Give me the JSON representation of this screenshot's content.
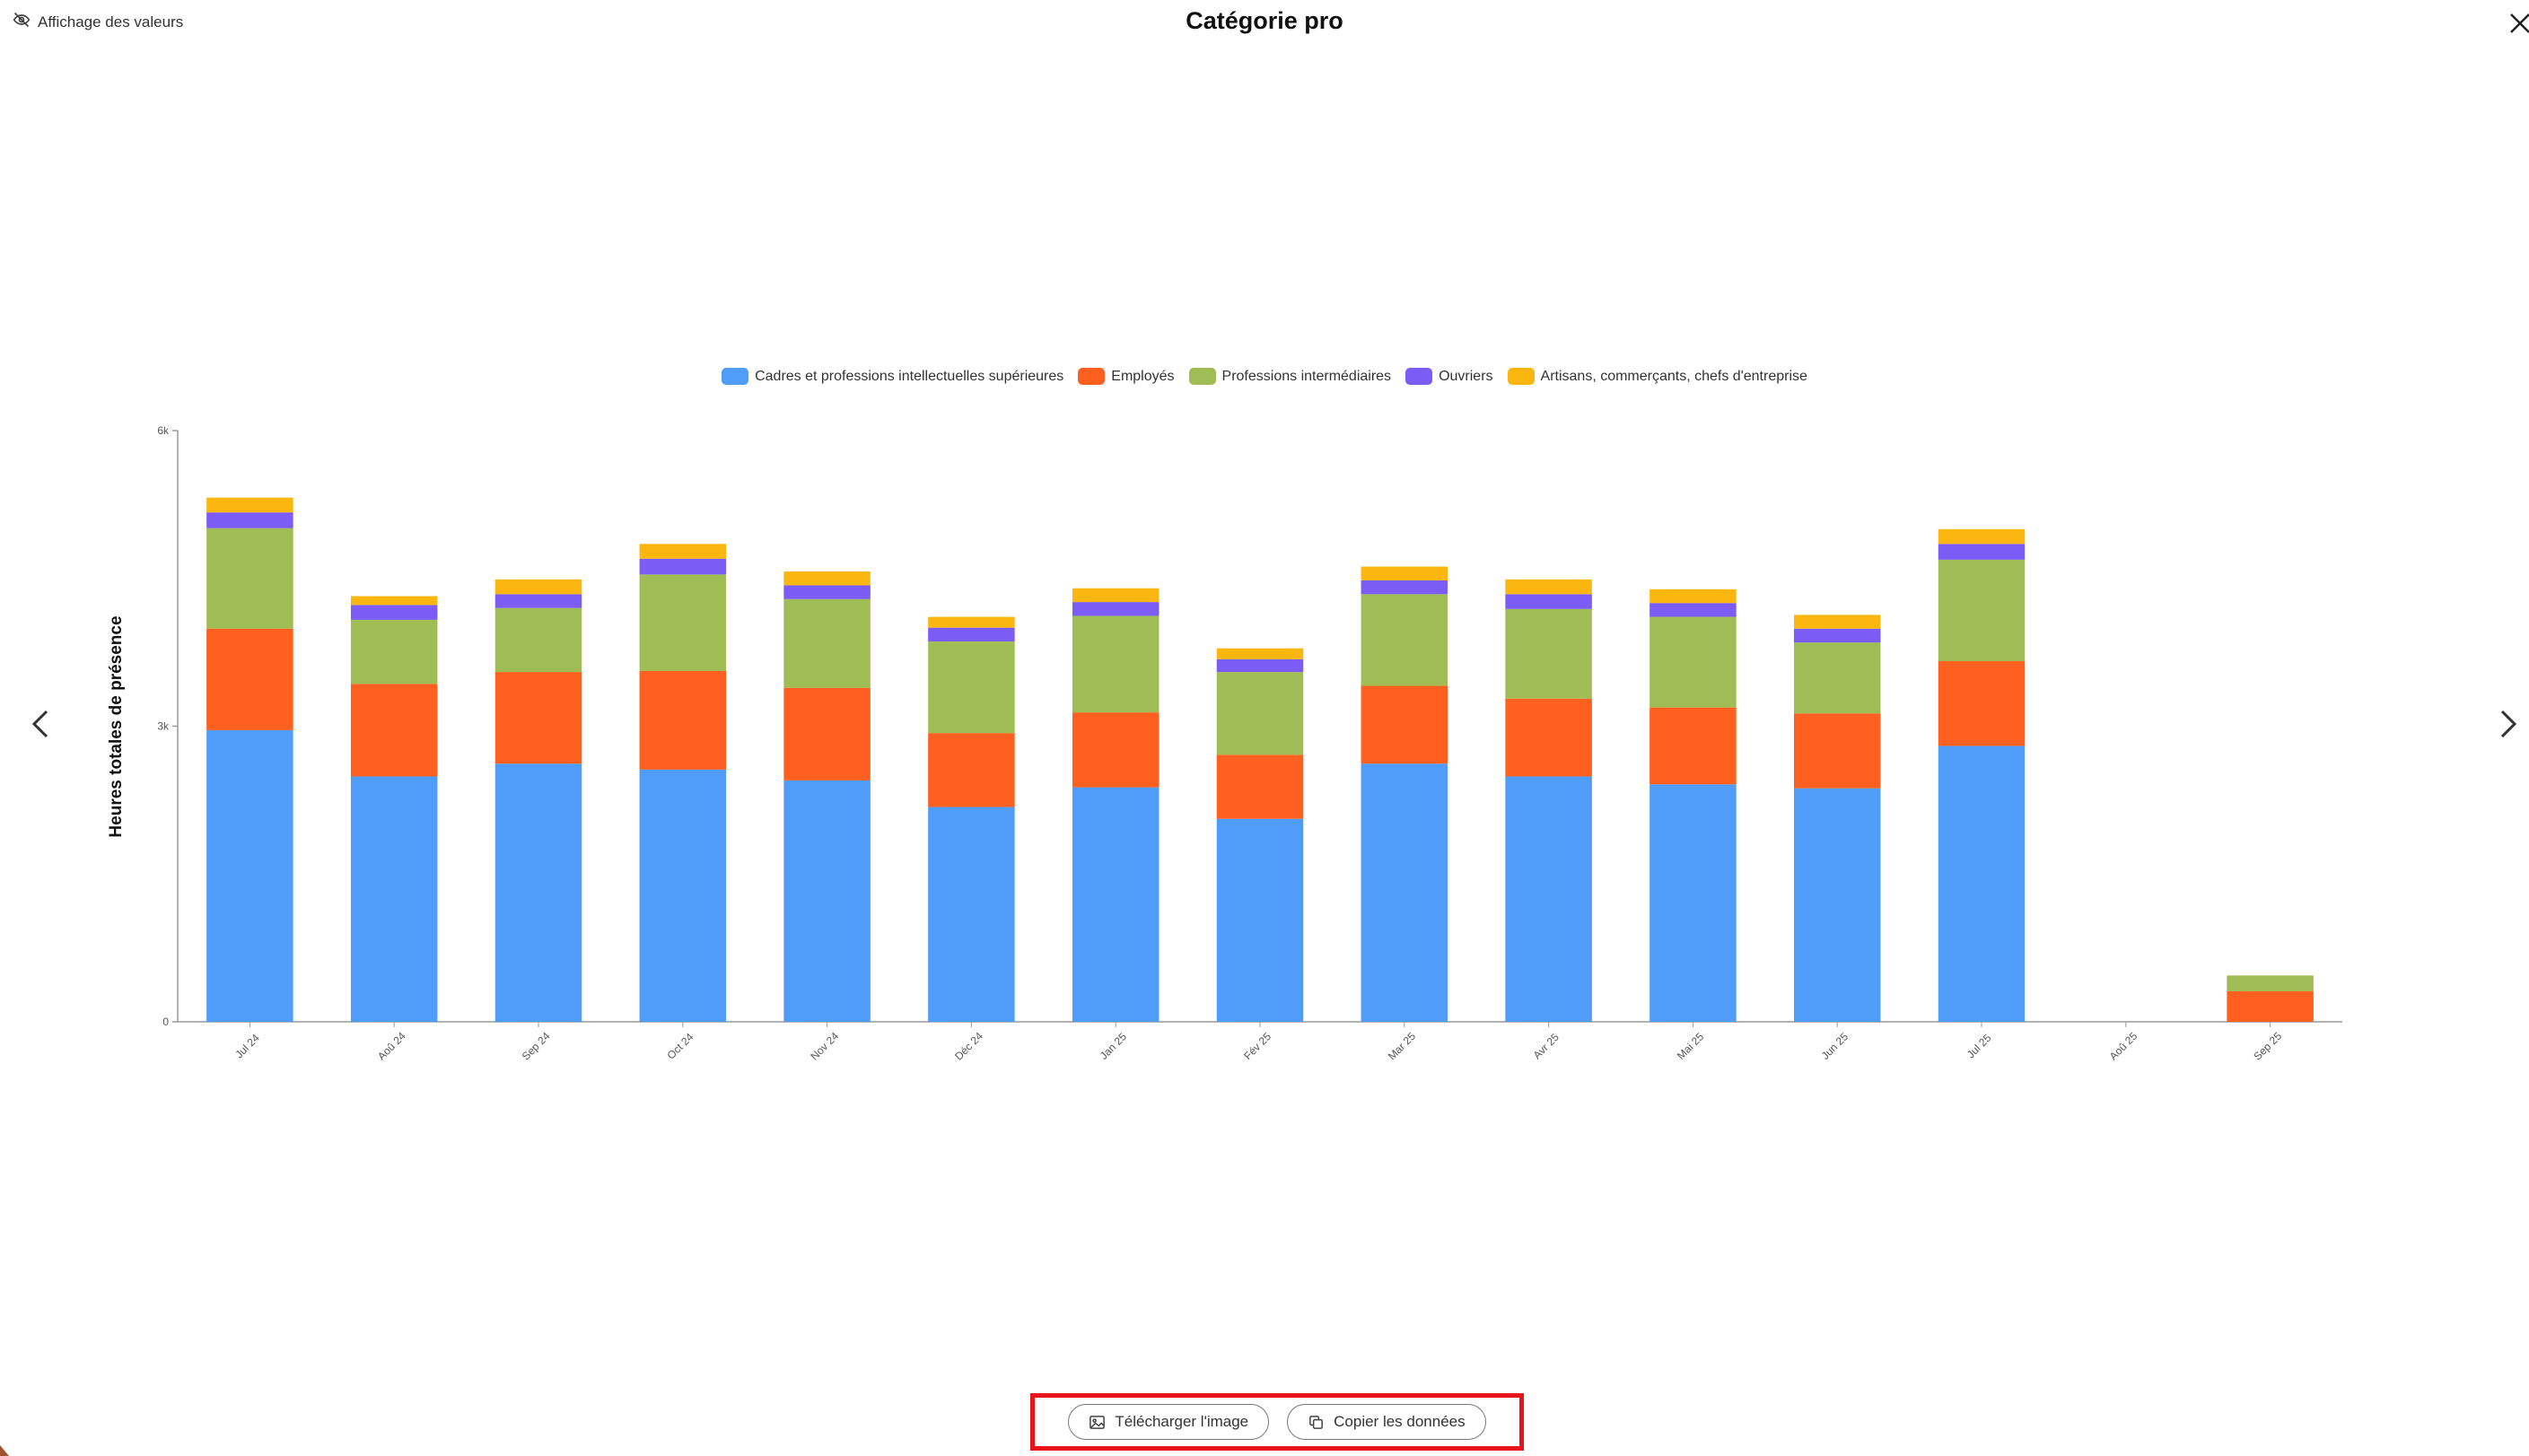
{
  "header": {
    "toggle_label": "Affichage des valeurs",
    "toggle_icon": "eye-off-icon",
    "title": "Catégorie pro",
    "close_icon": "close-icon"
  },
  "nav": {
    "prev_icon": "chevron-left-icon",
    "next_icon": "chevron-right-icon"
  },
  "actions": {
    "download_label": "Télécharger l'image",
    "download_icon": "image-icon",
    "copy_label": "Copier les données",
    "copy_icon": "copy-icon",
    "highlight_color": "#e8141c"
  },
  "chart_data": {
    "type": "bar",
    "stacked": true,
    "title": "",
    "xlabel": "",
    "ylabel": "Heures totales de présence",
    "ylim": [
      0,
      6000
    ],
    "yticks": [
      {
        "value": 0,
        "label": "0"
      },
      {
        "value": 3000,
        "label": "3k"
      },
      {
        "value": 6000,
        "label": "6k"
      }
    ],
    "grid": false,
    "legend_position": "top",
    "categories": [
      "Jul 24",
      "Aoû 24",
      "Sep 24",
      "Oct 24",
      "Nov 24",
      "Déc 24",
      "Jan 25",
      "Fév 25",
      "Mar 25",
      "Avr 25",
      "Mai 25",
      "Jun 25",
      "Jul 25",
      "Aoû 25",
      "Sep 25"
    ],
    "series": [
      {
        "name": "Cadres et professions intellectuelles supérieures",
        "color": "#4f9cf9",
        "values": [
          2960,
          2490,
          2620,
          2560,
          2450,
          2180,
          2380,
          2060,
          2620,
          2490,
          2410,
          2370,
          2800,
          0,
          0
        ]
      },
      {
        "name": "Employés",
        "color": "#ff5f1f",
        "values": [
          1030,
          940,
          930,
          1000,
          940,
          750,
          760,
          650,
          790,
          790,
          780,
          760,
          860,
          0,
          310
        ]
      },
      {
        "name": "Professions intermédiaires",
        "color": "#9fbd54",
        "values": [
          1020,
          650,
          650,
          980,
          900,
          930,
          980,
          840,
          930,
          910,
          920,
          720,
          1030,
          0,
          160
        ]
      },
      {
        "name": "Ouvriers",
        "color": "#7b5cf5",
        "values": [
          160,
          150,
          140,
          160,
          140,
          140,
          140,
          130,
          140,
          150,
          140,
          140,
          160,
          0,
          0
        ]
      },
      {
        "name": "Artisans, commerçants, chefs d'entreprise",
        "color": "#fbb70f",
        "values": [
          150,
          90,
          150,
          150,
          140,
          110,
          140,
          110,
          140,
          150,
          140,
          140,
          150,
          0,
          0
        ]
      }
    ]
  }
}
